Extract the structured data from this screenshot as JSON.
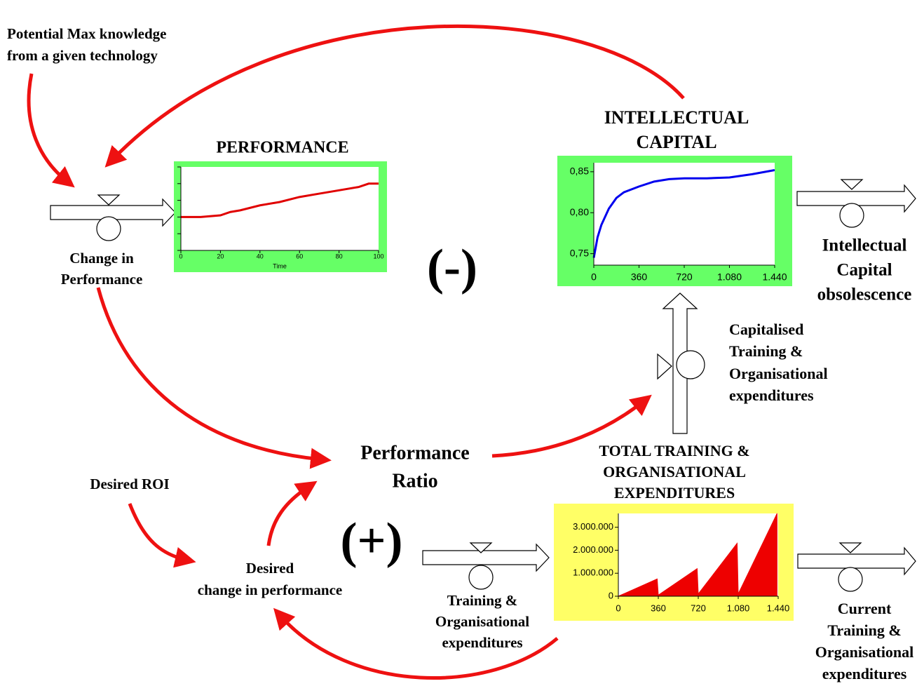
{
  "labels": {
    "potential_max": [
      "Potential Max knowledge",
      "from a given technology"
    ],
    "change_in_performance": [
      "Change in",
      "Performance"
    ],
    "negative_loop": "(-)",
    "positive_loop": "(+)",
    "ic_obsolescence": [
      "Intellectual",
      "Capital",
      "obsolescence"
    ],
    "capitalised": [
      "Capitalised",
      "Training &",
      "Organisational",
      "expenditures"
    ],
    "performance_ratio": [
      "Performance",
      "Ratio"
    ],
    "desired_roi": "Desired ROI",
    "desired_change": [
      "Desired",
      "change in performance"
    ],
    "training_expenditures": [
      "Training &",
      "Organisational",
      "expenditures"
    ],
    "current_expenditures": [
      "Current",
      "Training &",
      "Organisational",
      "expenditures"
    ]
  },
  "chart_data": [
    {
      "type": "line",
      "title": [
        "PERFORMANCE"
      ],
      "x_label": "Time",
      "color": "#e00000",
      "background": "#66ff66",
      "x": [
        0,
        10,
        20,
        25,
        30,
        40,
        50,
        60,
        70,
        80,
        90,
        95,
        100
      ],
      "values": [
        2.0,
        2.0,
        2.1,
        2.3,
        2.4,
        2.7,
        2.9,
        3.2,
        3.4,
        3.6,
        3.8,
        4.0,
        4.0
      ],
      "xlim": [
        0,
        100
      ],
      "xticks": [
        0,
        20,
        40,
        60,
        80,
        100
      ],
      "ylim": [
        0,
        5
      ],
      "yticks": [
        0,
        1,
        2,
        3,
        4,
        5
      ]
    },
    {
      "type": "line",
      "title": [
        "INTELLECTUAL",
        "CAPITAL"
      ],
      "color": "#0000ee",
      "background": "#66ff66",
      "x": [
        0,
        30,
        60,
        120,
        180,
        240,
        360,
        480,
        600,
        720,
        900,
        1080,
        1260,
        1440
      ],
      "values": [
        0.745,
        0.77,
        0.785,
        0.805,
        0.818,
        0.825,
        0.832,
        0.838,
        0.841,
        0.842,
        0.842,
        0.843,
        0.847,
        0.852
      ],
      "xlim": [
        0,
        1440
      ],
      "xticks": [
        0,
        360,
        720,
        {
          "value": 1080,
          "label": "1.080"
        },
        {
          "value": 1440,
          "label": "1.440"
        }
      ],
      "ylim": [
        0.736,
        0.861
      ],
      "yticks": [
        {
          "value": 0.75,
          "label": "0,75"
        },
        {
          "value": 0.8,
          "label": "0,80"
        },
        {
          "value": 0.85,
          "label": "0,85"
        }
      ]
    },
    {
      "type": "area",
      "title": [
        "TOTAL TRAINING &",
        "ORGANISATIONAL",
        "EXPENDITURES"
      ],
      "color": "#ee0000",
      "background": "#ffff66",
      "x": [
        0,
        350,
        360,
        710,
        720,
        1070,
        1080,
        1430
      ],
      "values": [
        0,
        750000,
        50000,
        1200000,
        100000,
        2300000,
        100000,
        3600000
      ],
      "xlim": [
        0,
        1440
      ],
      "xticks": [
        0,
        360,
        720,
        {
          "value": 1080,
          "label": "1.080"
        },
        {
          "value": 1440,
          "label": "1.440"
        }
      ],
      "ylim": [
        0,
        3600000
      ],
      "yticks": [
        0,
        {
          "value": 1000000,
          "label": "1.000.000"
        },
        {
          "value": 2000000,
          "label": "2.000.000"
        },
        {
          "value": 3000000,
          "label": "3.000.000"
        }
      ]
    }
  ]
}
